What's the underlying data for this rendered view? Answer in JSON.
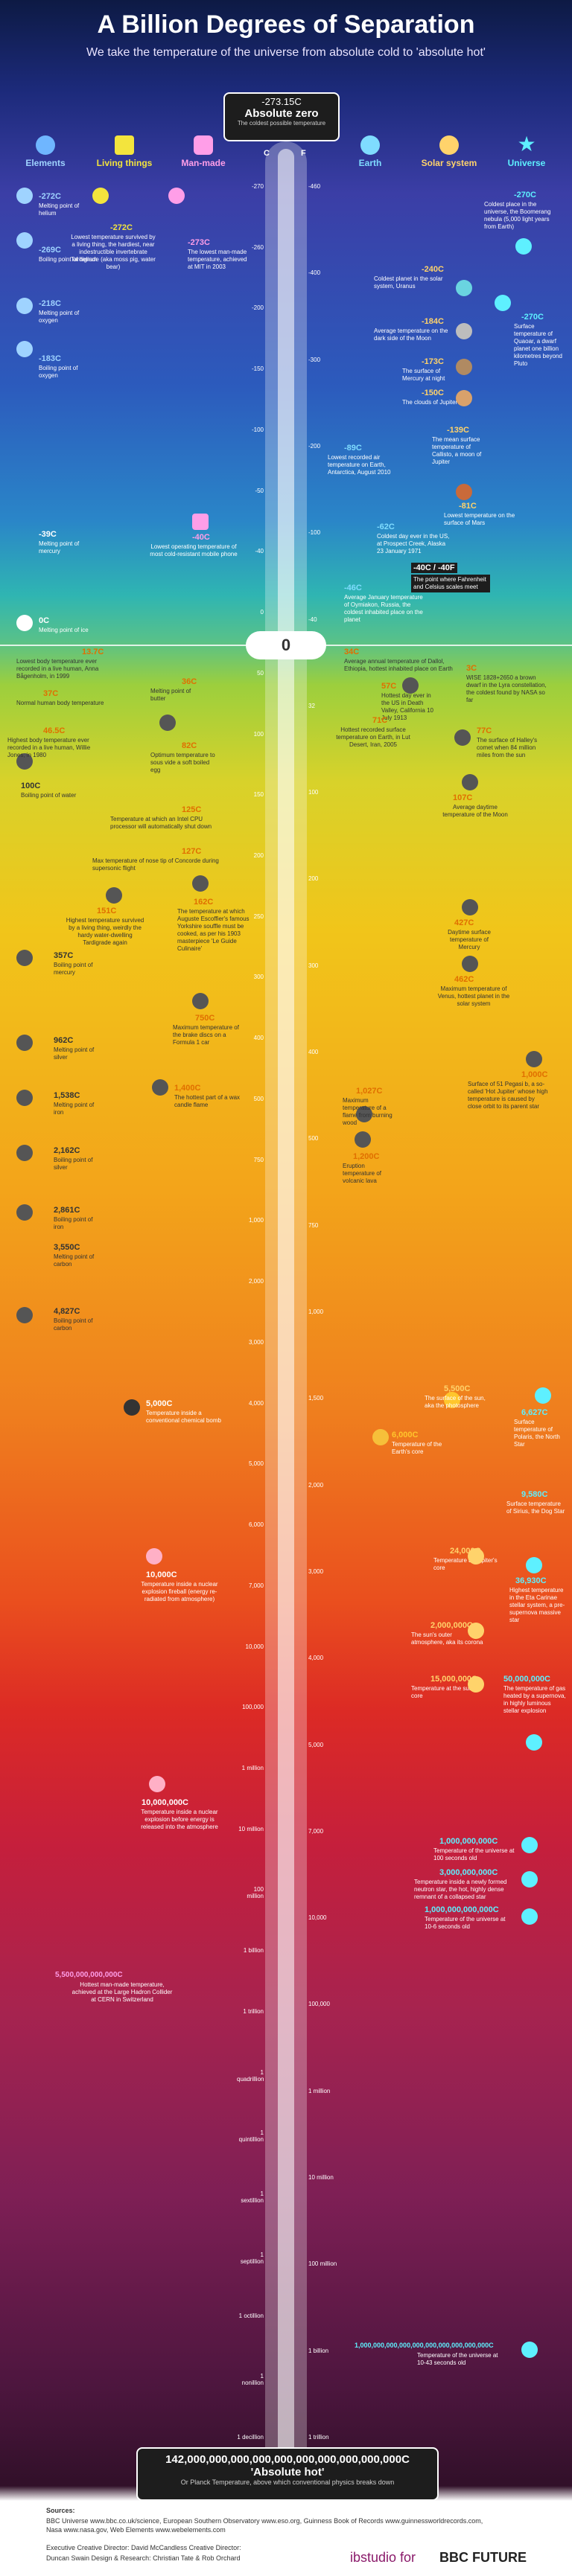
{
  "header": {
    "title": "A Billion Degrees of Separation",
    "subtitle": "We take the temperature of the universe from absolute cold to 'absolute hot'"
  },
  "categories": {
    "elements": "Elements",
    "living": "Living things",
    "manmade": "Man-made",
    "earth": "Earth",
    "solar": "Solar system",
    "universe": "Universe"
  },
  "top": {
    "value": "-273.15C",
    "label": "Absolute zero",
    "note": "The coldest possible temperature"
  },
  "axis": {
    "c": "C",
    "f": "F"
  },
  "zero": "0",
  "ticks_c": [
    "-270",
    "-260",
    "-200",
    "-150",
    "-100",
    "-50",
    "-40",
    "0",
    "50",
    "100",
    "150",
    "200",
    "250",
    "300",
    "400",
    "500",
    "750",
    "1,000",
    "2,000",
    "3,000",
    "4,000",
    "5,000",
    "6,000",
    "7,000",
    "10,000",
    "100,000",
    "1 million",
    "10 million",
    "100 million",
    "1 billion",
    "1 trillion",
    "1 quadrillion",
    "1 quintillion",
    "1 sextillion",
    "1 septillion",
    "1 octillion",
    "1 nonillion",
    "1 decillion"
  ],
  "ticks_f": [
    "-460",
    "-400",
    "-300",
    "-200",
    "-100",
    "-40",
    "32",
    "100",
    "200",
    "300",
    "400",
    "500",
    "750",
    "1,000",
    "1,500",
    "2,000",
    "3,000",
    "4,000",
    "5,000",
    "7,000",
    "10,000",
    "100,000",
    "1 million",
    "10 million",
    "100 million",
    "1 billion",
    "1 trillion"
  ],
  "notes": {
    "n1": {
      "temp": "-272C",
      "text": "Melting point of helium"
    },
    "n2": {
      "temp": "-269C",
      "text": "Boiling point of helium"
    },
    "n3": {
      "temp": "-218C",
      "text": "Melting point of oxygen"
    },
    "n4": {
      "temp": "-183C",
      "text": "Boiling point of oxygen"
    },
    "n5": {
      "temp": "-39C",
      "text": "Melting point of mercury"
    },
    "n6": {
      "temp": "0C",
      "text": "Melting point of ice"
    },
    "n7": {
      "temp": "100C",
      "text": "Boiling point of water"
    },
    "n8": {
      "temp": "357C",
      "text": "Boiling point of mercury"
    },
    "n9": {
      "temp": "962C",
      "text": "Melting point of silver"
    },
    "n10": {
      "temp": "1,538C",
      "text": "Melting point of iron"
    },
    "n11": {
      "temp": "2,162C",
      "text": "Boiling point of silver"
    },
    "n12": {
      "temp": "2,861C",
      "text": "Boiling point of iron"
    },
    "n13": {
      "temp": "3,550C",
      "text": "Melting point of carbon"
    },
    "n14": {
      "temp": "4,827C",
      "text": "Boiling point of carbon"
    },
    "l1": {
      "temp": "-272C",
      "text": "Lowest temperature survived by a living thing, the hardiest, near indestructible invertebrate Tardigrade (aka moss pig, water bear)"
    },
    "l2": {
      "temp": "13.7C",
      "text": "Lowest body temperature ever recorded in a live human, Anna Bågenholm, in 1999"
    },
    "l3": {
      "temp": "37C",
      "text": "Normal human body temperature"
    },
    "l4": {
      "temp": "46.5C",
      "text": "Highest body temperature ever recorded in a live human, Willie Jones, in 1980"
    },
    "l5": {
      "temp": "151C",
      "text": "Highest temperature survived by a living thing, weirdly the hardy water-dwelling Tardigrade again"
    },
    "m1": {
      "temp": "-273C",
      "text": "The lowest man-made temperature, achieved at MIT in 2003"
    },
    "m2": {
      "temp": "-40C",
      "text": "Lowest operating temperature of most cold-resistant mobile phone"
    },
    "m3": {
      "temp": "36C",
      "text": "Melting point of butter"
    },
    "m4": {
      "temp": "82C",
      "text": "Optimum temperature to sous vide a soft boiled egg"
    },
    "m5": {
      "temp": "125C",
      "text": "Temperature at which an Intel CPU processor will automatically shut down"
    },
    "m6": {
      "temp": "127C",
      "text": "Max temperature of nose tip of Concorde during supersonic flight"
    },
    "m7": {
      "temp": "162C",
      "text": "The temperature at which Auguste Escoffier's famous Yorkshire souffle must be cooked, as per his 1903 masterpiece 'Le Guide Culinaire'"
    },
    "m8": {
      "temp": "750C",
      "text": "Maximum temperature of the brake discs on a Formula 1 car"
    },
    "m9": {
      "temp": "1,400C",
      "text": "The hottest part of a wax candle flame"
    },
    "m10": {
      "temp": "5,000C",
      "text": "Temperature inside a conventional chemical bomb"
    },
    "m11": {
      "temp": "10,000C",
      "text": "Temperature inside a nuclear explosion fireball (energy re-radiated from atmosphere)"
    },
    "m12": {
      "temp": "10,000,000C",
      "text": "Temperature inside a nuclear explosion before energy is released into the atmosphere"
    },
    "m13": {
      "temp": "5,500,000,000,000C",
      "text": "Hottest man-made temperature, achieved at the Large Hadron Collider at CERN in Switzerland"
    },
    "e1": {
      "temp": "-89C",
      "text": "Lowest recorded air temperature on Earth, Antarctica, August 2010"
    },
    "e2": {
      "temp": "-62C",
      "text": "Coldest day ever in the US, at Prospect Creek, Alaska 23 January 1971"
    },
    "e3": {
      "temp": "-40C / -40F",
      "text": "The point where Fahrenheit and Celsius scales meet"
    },
    "e4": {
      "temp": "-46C",
      "text": "Average January temperature of Oymiakon, Russia, the coldest inhabited place on the planet"
    },
    "e5": {
      "temp": "34C",
      "text": "Average annual temperature of Dallol, Ethiopia, hottest inhabited place on Earth"
    },
    "e6": {
      "temp": "57C",
      "text": "Hottest day ever in the US in Death Valley, California 10 July 1913"
    },
    "e7": {
      "temp": "71C",
      "text": "Hottest recorded surface temperature on Earth, in Lut Desert, Iran, 2005"
    },
    "e8": {
      "temp": "1,027C",
      "text": "Maximum temperature of a flame from burning wood"
    },
    "e9": {
      "temp": "1,200C",
      "text": "Eruption temperature of volcanic lava"
    },
    "e10": {
      "temp": "6,000C",
      "text": "Temperature of the Earth's core"
    },
    "s1": {
      "temp": "-240C",
      "text": "Coldest planet in the solar system, Uranus"
    },
    "s2": {
      "temp": "-184C",
      "text": "Average temperature on the dark side of the Moon"
    },
    "s3": {
      "temp": "-173C",
      "text": "The surface of Mercury at night"
    },
    "s4": {
      "temp": "-150C",
      "text": "The clouds of Jupiter"
    },
    "s5": {
      "temp": "-139C",
      "text": "The mean surface temperature of Callisto, a moon of Jupiter"
    },
    "s6": {
      "temp": "-81C",
      "text": "Lowest temperature on the surface of Mars"
    },
    "s7": {
      "temp": "107C",
      "text": "Average daytime temperature of the Moon"
    },
    "s8": {
      "temp": "427C",
      "text": "Daytime surface temperature of Mercury"
    },
    "s9": {
      "temp": "462C",
      "text": "Maximum temperature of Venus, hottest planet in the solar system"
    },
    "s10": {
      "temp": "5,500C",
      "text": "The surface of the sun, aka the photosphere"
    },
    "s11": {
      "temp": "24,000C",
      "text": "Temperature at Jupiter's core"
    },
    "s12": {
      "temp": "2,000,000C",
      "text": "The sun's outer atmosphere, aka its corona"
    },
    "s13": {
      "temp": "15,000,000C",
      "text": "Temperature at the sun's core"
    },
    "u1": {
      "temp": "-270C",
      "text": "Coldest place in the universe, the Boomerang nebula (5,000 light years from Earth)"
    },
    "u2": {
      "temp": "-270C",
      "text": "Surface temperature of Quaoar, a dwarf planet one billion kilometres beyond Pluto"
    },
    "u3": {
      "temp": "3C",
      "text": "WISE 1828+2650 a brown dwarf in the Lyra constellation, the coldest found by NASA so far"
    },
    "u4": {
      "temp": "77C",
      "text": "The surface of Halley's comet when 84 million miles from the sun"
    },
    "u5": {
      "temp": "1,000C",
      "text": "Surface of 51 Pegasi b, a so-called 'Hot Jupiter' whose high temperature is caused by close orbit to its parent star"
    },
    "u6": {
      "temp": "6,627C",
      "text": "Surface temperature of Polaris, the North Star"
    },
    "u7": {
      "temp": "9,580C",
      "text": "Surface temperature of Sirius, the Dog Star"
    },
    "u8": {
      "temp": "36,930C",
      "text": "Highest temperature in the Eta Carinae stellar system, a pre-supernova massive star"
    },
    "u9": {
      "temp": "50,000,000C",
      "text": "The temperature of gas heated by a supernova, in highly luminous stellar explosion"
    },
    "u10": {
      "temp": "1,000,000,000C",
      "text": "Temperature of the universe at 100 seconds old"
    },
    "u11": {
      "temp": "3,000,000,000C",
      "text": "Temperature inside a newly formed neutron star, the hot, highly dense remnant of a collapsed star"
    },
    "u12": {
      "temp": "1,000,000,000,000C",
      "text": "Temperature of the universe at 10-6 seconds old"
    },
    "u13": {
      "temp": "1,000,000,000,000,000,000,000,000,000,000C",
      "text": "Temperature of the universe at 10-43 seconds old"
    }
  },
  "bottom": {
    "value1": "142,000,000,000,000,000,000,000,000,000,000C",
    "label": "'Absolute hot'",
    "note": "Or Planck Temperature, above which conventional physics breaks down"
  },
  "sources": {
    "heading": "Sources:",
    "line1": "BBC Universe www.bbc.co.uk/science, European Southern Observatory www.eso.org, Guinness Book of Records www.guinnessworldrecords.com,",
    "line2": "Nasa www.nasa.gov, Web Elements www.webelements.com"
  },
  "credits": {
    "line1": "Executive Creative Director: David McCandless  Creative Director:",
    "line2": "Duncan Swain  Design & Research: Christian Tate & Rob Orchard",
    "brand": "BBC FUTURE",
    "studio": "ibstudio for"
  },
  "colors": {
    "elements": "#9fd3ff",
    "living": "#f3e43d",
    "manmade": "#ff9ee8",
    "earth": "#7fdcff",
    "solar": "#ffd36b",
    "universe": "#5ef0ff"
  }
}
